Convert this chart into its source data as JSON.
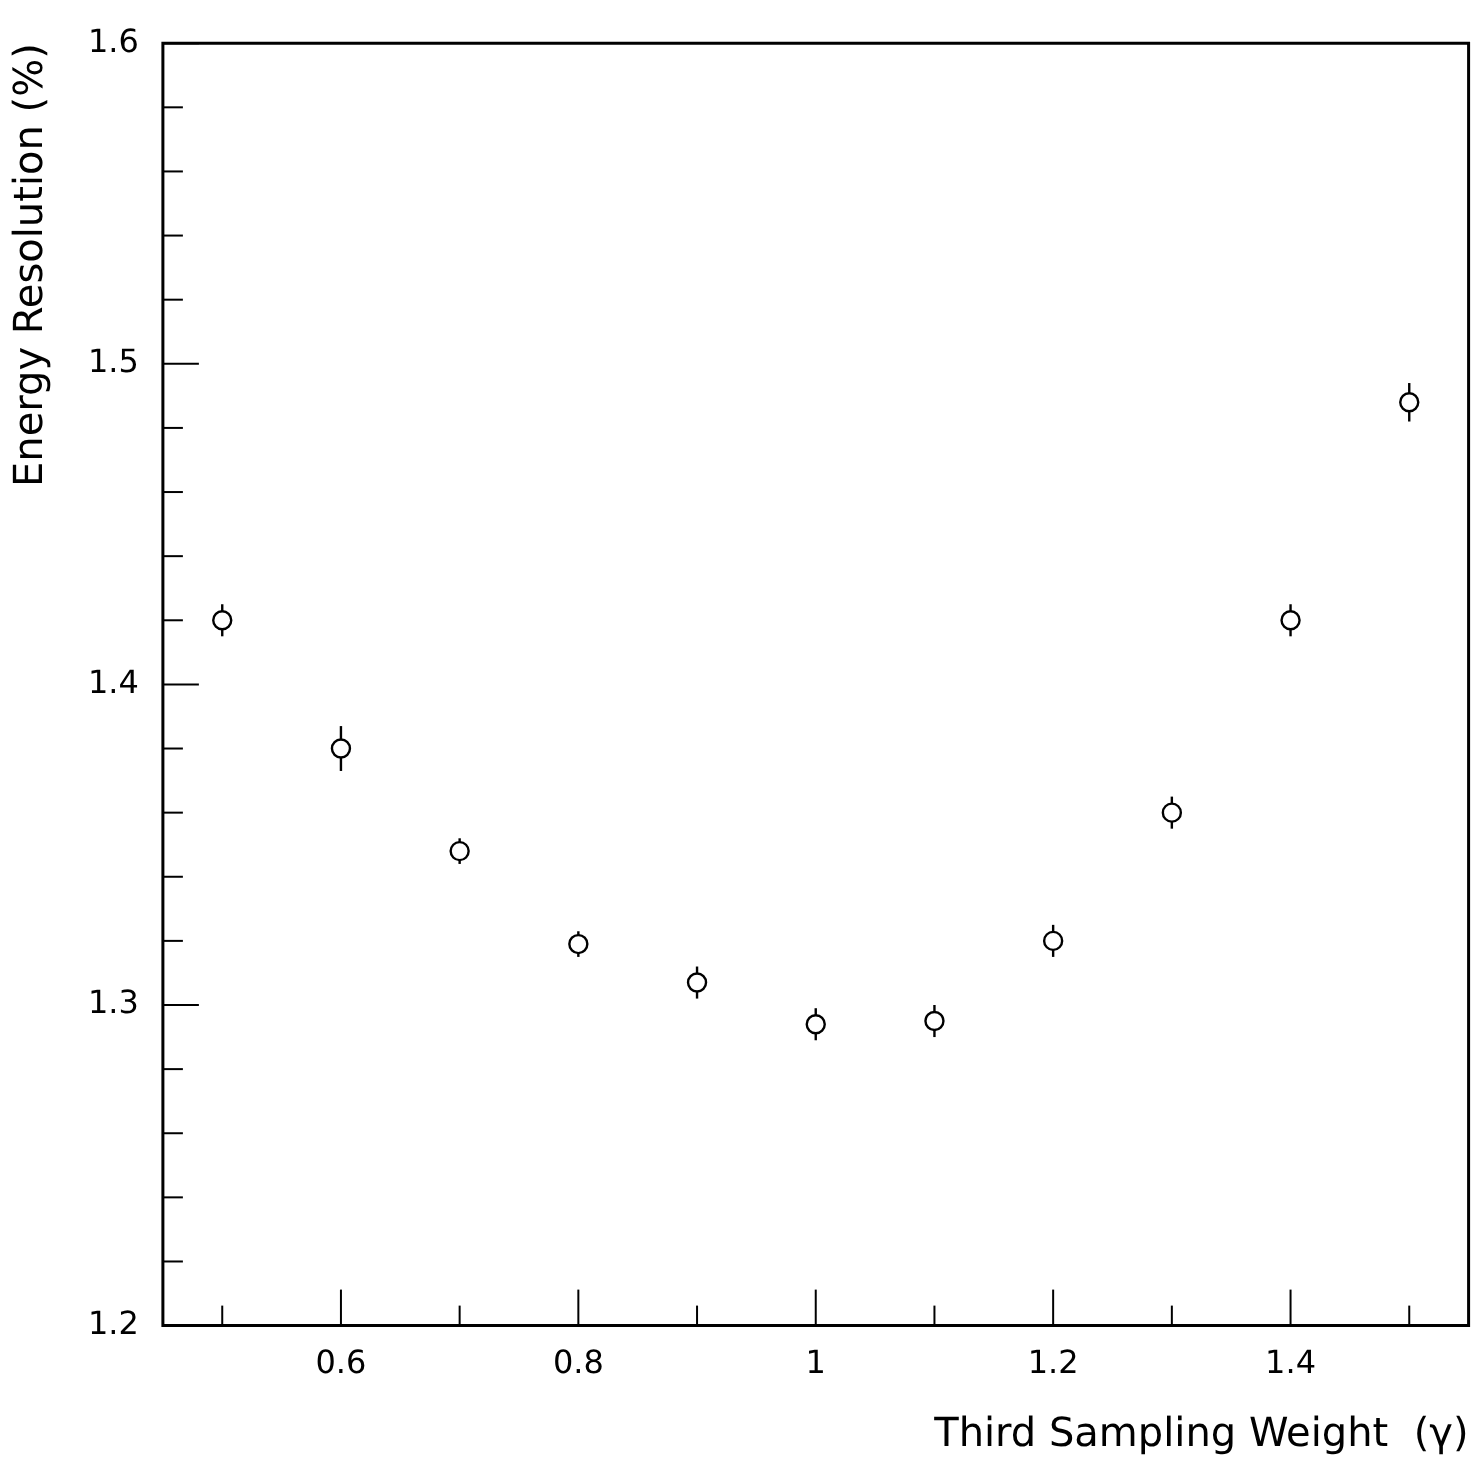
{
  "chart_data": {
    "type": "scatter",
    "xlabel": "Third Sampling Weight  (γ)",
    "ylabel": "Energy Resolution (%)",
    "x": [
      0.5,
      0.6,
      0.7,
      0.8,
      0.9,
      1.0,
      1.1,
      1.2,
      1.3,
      1.4,
      1.5
    ],
    "series": [
      {
        "color": "#000000",
        "values": [
          1.42,
          1.38,
          1.348,
          1.319,
          1.307,
          1.294,
          1.295,
          1.32,
          1.36,
          1.42,
          1.488
        ],
        "errors": [
          0.005,
          0.007,
          0.004,
          0.004,
          0.005,
          0.005,
          0.005,
          0.005,
          0.005,
          0.005,
          0.006
        ]
      }
    ],
    "xlim": [
      0.45,
      1.55
    ],
    "xticks": [
      {
        "value": 0.5,
        "label": null
      },
      0.6,
      {
        "value": 0.7,
        "label": null
      },
      0.8,
      {
        "value": 0.9,
        "label": null
      },
      1,
      {
        "value": 1.1,
        "label": null
      },
      1.2,
      {
        "value": 1.3,
        "label": null
      },
      1.4,
      {
        "value": 1.5,
        "label": null
      }
    ],
    "ylim": [
      1.2,
      1.6
    ],
    "yticks": [
      1.2,
      {
        "value": 1.22,
        "label": null
      },
      {
        "value": 1.24,
        "label": null
      },
      {
        "value": 1.26,
        "label": null
      },
      {
        "value": 1.28,
        "label": null
      },
      1.3,
      {
        "value": 1.32,
        "label": null
      },
      {
        "value": 1.34,
        "label": null
      },
      {
        "value": 1.36,
        "label": null
      },
      {
        "value": 1.38,
        "label": null
      },
      1.4,
      {
        "value": 1.42,
        "label": null
      },
      {
        "value": 1.44,
        "label": null
      },
      {
        "value": 1.46,
        "label": null
      },
      {
        "value": 1.48,
        "label": null
      },
      1.5,
      {
        "value": 1.52,
        "label": null
      },
      {
        "value": 1.54,
        "label": null
      },
      {
        "value": 1.56,
        "label": null
      },
      {
        "value": 1.58,
        "label": null
      },
      1.6
    ],
    "marker": "circle",
    "grid": false,
    "legend": false
  }
}
